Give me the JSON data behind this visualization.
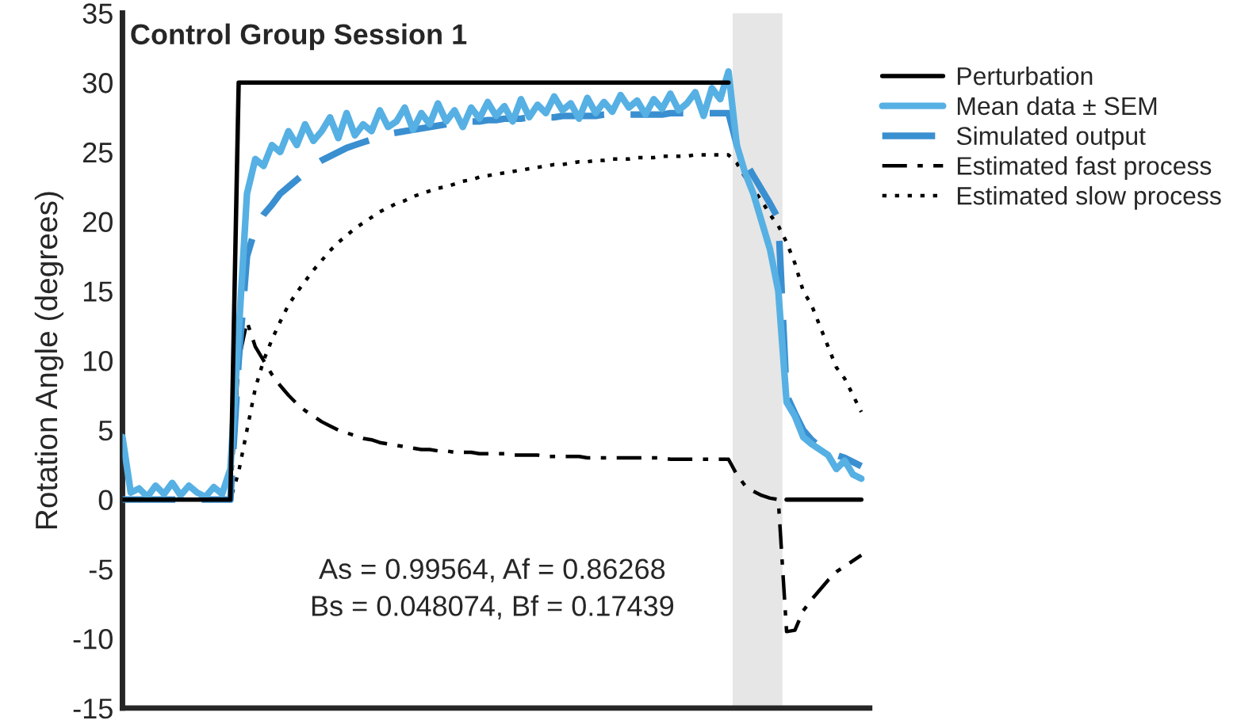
{
  "chart_data": {
    "type": "line",
    "title": "Control Group Session 1",
    "ylabel": "Rotation Angle (degrees)",
    "categories": [
      null,
      null,
      null,
      null,
      null,
      null,
      null,
      null,
      null,
      null,
      null,
      null,
      null,
      null,
      null,
      null,
      null,
      null,
      null,
      null,
      null,
      null,
      null,
      null,
      null,
      null,
      null,
      null,
      null,
      null,
      null,
      null,
      null,
      null,
      null,
      null,
      null,
      null,
      null,
      null,
      null,
      null,
      null,
      null,
      null,
      null,
      null,
      null,
      null,
      null,
      null,
      null,
      null,
      null,
      null,
      null,
      null,
      null,
      null,
      null,
      null,
      null,
      null,
      null,
      null,
      null,
      null,
      null,
      null,
      null,
      null,
      null,
      null,
      null,
      null,
      null,
      null,
      null,
      null,
      null,
      null,
      null,
      null,
      null,
      null,
      null,
      null,
      null,
      null,
      null
    ],
    "ylim": [
      -15,
      35
    ],
    "yticks": [
      -15,
      -10,
      -5,
      0,
      5,
      10,
      15,
      20,
      25,
      30,
      35
    ],
    "tick_labels": "y",
    "grid": false,
    "legend": "right",
    "marker": "none",
    "annotations": [
      "As = 0.99564, Af = 0.86268\nBs = 0.048074, Bf = 0.17439"
    ],
    "series": [
      {
        "name": "Perturbation",
        "color": "#000000",
        "line_style": "solid",
        "values": [
          0,
          0,
          0,
          0,
          0,
          0,
          0,
          0,
          0,
          0,
          0,
          0,
          0,
          0,
          30,
          30,
          30,
          30,
          30,
          30,
          30,
          30,
          30,
          30,
          30,
          30,
          30,
          30,
          30,
          30,
          30,
          30,
          30,
          30,
          30,
          30,
          30,
          30,
          30,
          30,
          30,
          30,
          30,
          30,
          30,
          30,
          30,
          30,
          30,
          30,
          30,
          30,
          30,
          30,
          30,
          30,
          30,
          30,
          30,
          30,
          30,
          30,
          30,
          30,
          30,
          30,
          30,
          30,
          30,
          30,
          30,
          30,
          30,
          30,
          null,
          null,
          null,
          null,
          null,
          null,
          0,
          0,
          0,
          0,
          0,
          0,
          0,
          0,
          0,
          0
        ]
      },
      {
        "name": "Mean data ± SEM",
        "color": "#56b0e3",
        "line_style": "solid",
        "values": [
          4.5,
          0.5,
          0.8,
          0.2,
          1,
          0.4,
          1.2,
          0.3,
          1,
          0.5,
          0.2,
          0.9,
          0.4,
          2.2,
          12,
          22,
          24.5,
          24,
          25.5,
          25,
          26.5,
          25.5,
          27,
          25.8,
          26.5,
          27.5,
          26,
          27.8,
          26.2,
          27,
          26.5,
          28,
          26.8,
          27.2,
          28.2,
          26.6,
          27.8,
          27,
          28.5,
          27.2,
          28,
          26.8,
          28.2,
          27.4,
          28.6,
          27.6,
          28.3,
          27.2,
          28.8,
          27.5,
          28.4,
          27.8,
          29,
          28,
          28.5,
          27.4,
          28.9,
          27.8,
          28.6,
          27.9,
          29.1,
          28.2,
          28.7,
          27.7,
          28.8,
          28.1,
          29.2,
          28,
          28.5,
          29.3,
          27.6,
          29.6,
          28.8,
          30.8,
          25.5,
          23.5,
          22,
          20,
          18,
          15,
          7,
          6,
          4.5,
          4,
          3.6,
          3.2,
          2.2,
          2.8,
          1.8,
          1.5
        ]
      },
      {
        "name": "Simulated output",
        "color": "#3a8fd0",
        "line_style": "dashed",
        "values": [
          0,
          0,
          0,
          0,
          0,
          0,
          0,
          0,
          0,
          0,
          0,
          0,
          0,
          0,
          10,
          17.5,
          19.5,
          20.5,
          21.2,
          22,
          22.5,
          23,
          23.5,
          24,
          24.4,
          24.7,
          25,
          25.3,
          25.5,
          25.7,
          25.9,
          26.1,
          26.3,
          26.4,
          26.5,
          26.6,
          26.7,
          26.8,
          26.9,
          27,
          27.1,
          27.1,
          27.2,
          27.2,
          27.3,
          27.3,
          27.4,
          27.4,
          27.4,
          27.5,
          27.5,
          27.5,
          27.5,
          27.6,
          27.6,
          27.6,
          27.6,
          27.6,
          27.7,
          27.7,
          27.7,
          27.7,
          27.7,
          27.7,
          27.7,
          27.7,
          27.8,
          27.8,
          27.8,
          27.8,
          27.8,
          27.8,
          27.8,
          27.8,
          25.5,
          24.3,
          23.3,
          22.3,
          21.3,
          20.2,
          7.5,
          6.2,
          5,
          4.3,
          3.8,
          3.5,
          3.2,
          3,
          2.7,
          2.4
        ]
      },
      {
        "name": "Estimated fast process",
        "color": "#000000",
        "line_style": "dashdot",
        "values": [
          0,
          0,
          0,
          0,
          0,
          0,
          0,
          0,
          0,
          0,
          0,
          0,
          0,
          0,
          10,
          12.8,
          11,
          10,
          9,
          8.2,
          7.5,
          6.9,
          6.4,
          6,
          5.6,
          5.3,
          5,
          4.8,
          4.6,
          4.4,
          4.3,
          4.1,
          4,
          3.9,
          3.8,
          3.7,
          3.6,
          3.6,
          3.5,
          3.5,
          3.4,
          3.4,
          3.4,
          3.3,
          3.3,
          3.3,
          3.3,
          3.2,
          3.2,
          3.2,
          3.2,
          3.1,
          3.1,
          3.1,
          3.1,
          3.1,
          3,
          3,
          3,
          3,
          3,
          3,
          3,
          3,
          3,
          3,
          2.9,
          2.9,
          2.9,
          2.9,
          2.9,
          2.9,
          2.9,
          2.9,
          1.8,
          1,
          0.6,
          0.3,
          0.1,
          0,
          -9.5,
          -9.4,
          -8,
          -7.2,
          -6.5,
          -5.8,
          -5.2,
          -4.8,
          -4.4,
          -4
        ]
      },
      {
        "name": "Estimated slow process",
        "color": "#000000",
        "line_style": "dotted",
        "values": [
          0,
          0,
          0,
          0,
          0,
          0,
          0,
          0,
          0,
          0,
          0,
          0,
          0,
          0,
          2,
          5,
          8,
          10,
          11.5,
          12.8,
          14,
          14.9,
          15.7,
          16.5,
          17.2,
          17.9,
          18.5,
          19,
          19.5,
          19.9,
          20.3,
          20.7,
          21,
          21.3,
          21.5,
          21.8,
          22,
          22.2,
          22.4,
          22.5,
          22.7,
          22.9,
          23,
          23.2,
          23.3,
          23.4,
          23.5,
          23.6,
          23.7,
          23.8,
          23.9,
          24,
          24.1,
          24.1,
          24.2,
          24.3,
          24.3,
          24.4,
          24.4,
          24.5,
          24.5,
          24.5,
          24.6,
          24.6,
          24.6,
          24.7,
          24.7,
          24.7,
          24.7,
          24.8,
          24.8,
          24.8,
          24.8,
          24.8,
          24.2,
          23.2,
          22.3,
          21.5,
          20.5,
          19.7,
          18.5,
          17,
          15,
          14,
          12.5,
          11,
          9.5,
          8.7,
          7.5,
          6.3
        ]
      }
    ]
  }
}
